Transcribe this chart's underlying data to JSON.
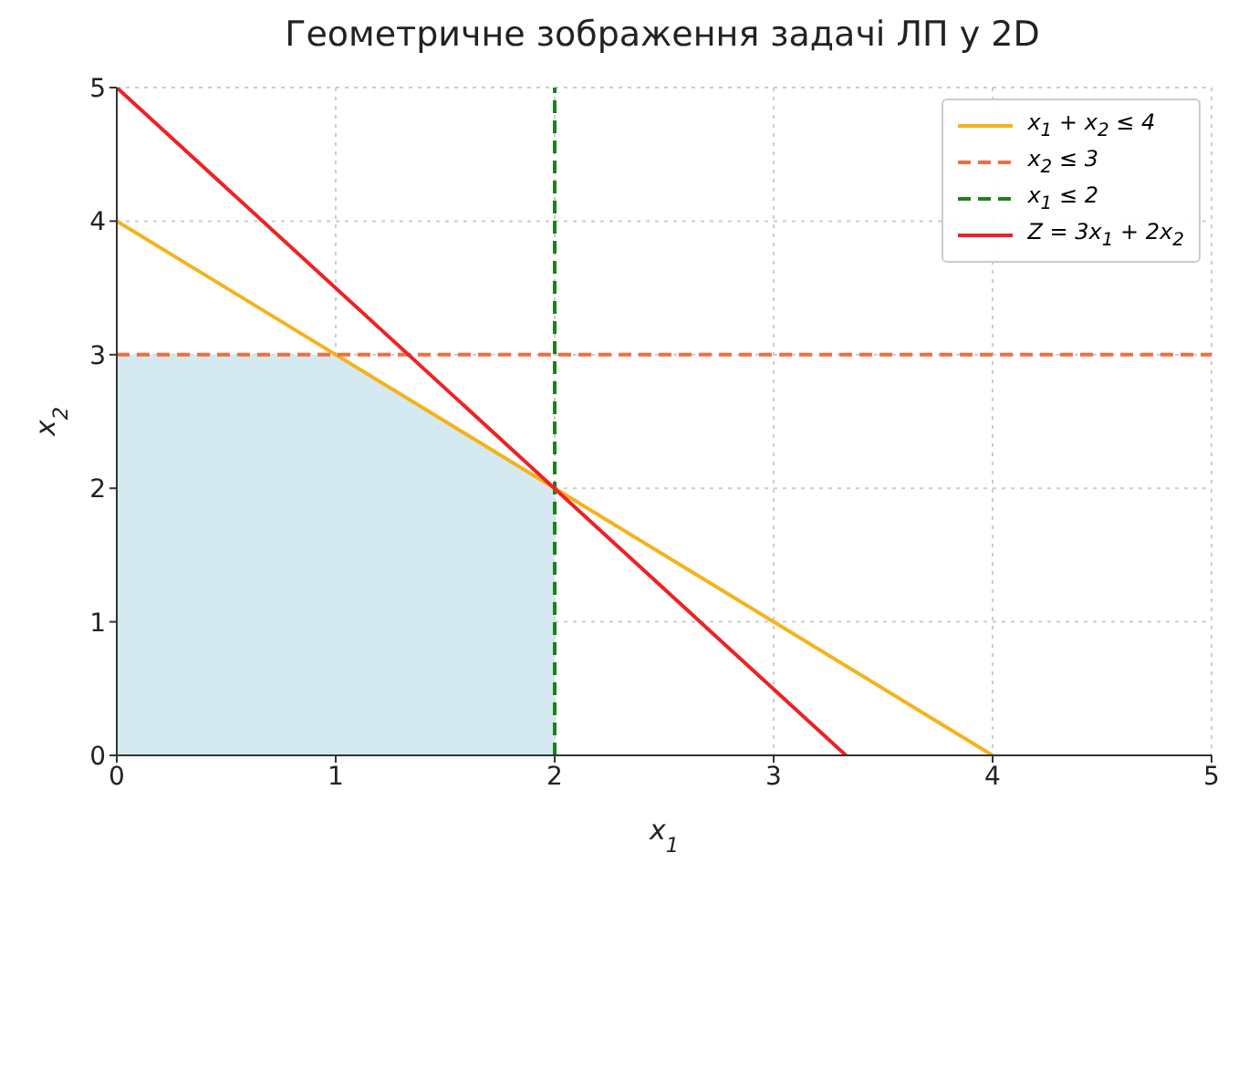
{
  "chart_data": {
    "type": "line",
    "title": "Геометричне зображення задачі ЛП у 2D",
    "xlabel": "x$_{1}$",
    "ylabel": "x$_{2}$",
    "xlim": [
      0,
      5
    ],
    "ylim": [
      0,
      5
    ],
    "xticks": [
      0,
      1,
      2,
      3,
      4,
      5
    ],
    "yticks": [
      0,
      1,
      2,
      3,
      4,
      5
    ],
    "grid": true,
    "legend": "top right",
    "marker": "none",
    "series": [
      {
        "type": "area",
        "color": "#d4e9f0",
        "x": [
          0,
          1,
          2
        ],
        "values": [
          3,
          3,
          2
        ]
      },
      {
        "name": "x$_{1}$ + x$_{2}$ ≤ 4",
        "color": "#f5b21b",
        "x": [
          0,
          4
        ],
        "values": [
          4,
          0
        ],
        "line_style": "solid"
      },
      {
        "name": "x$_{2}$ ≤ 3",
        "color": "#f46d3b",
        "x": [
          0,
          5
        ],
        "values": [
          3,
          3
        ],
        "line_style": "dashed"
      },
      {
        "name": "x$_{1}$ ≤ 2",
        "color": "#1d7f1d",
        "x": [
          2,
          2
        ],
        "values": [
          0,
          5
        ],
        "line_style": "dashed"
      },
      {
        "name": "Z = 3x$_{1}$ + 2x$_{2}$",
        "color": "#ee2124",
        "x": [
          0,
          3.33
        ],
        "values": [
          5,
          0
        ],
        "line_style": "solid"
      }
    ]
  }
}
